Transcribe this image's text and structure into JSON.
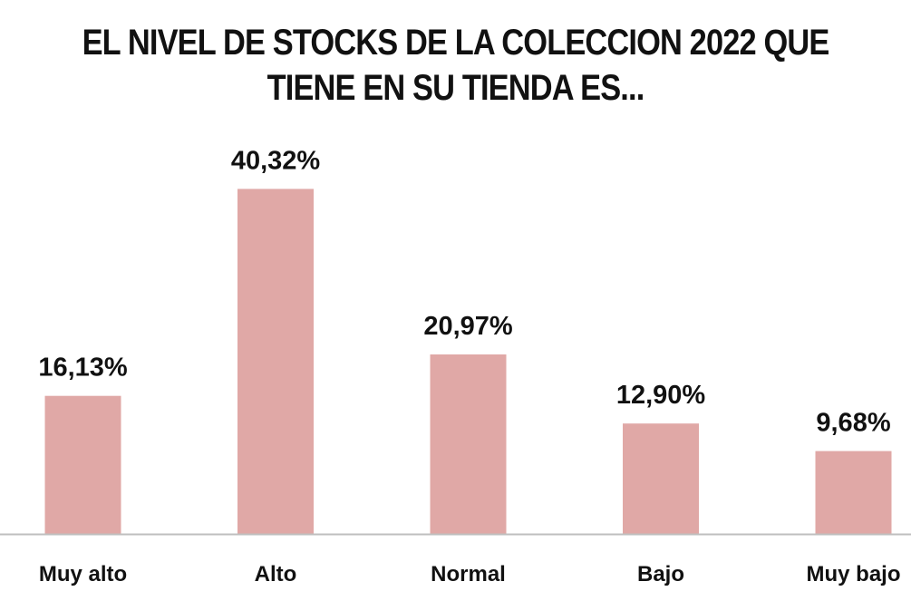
{
  "chart_data": {
    "type": "bar",
    "title": [
      "EL NIVEL DE STOCKS DE LA COLECCION 2022 QUE",
      "TIENE EN SU TIENDA ES..."
    ],
    "categories": [
      "Muy alto",
      "Alto",
      "Normal",
      "Bajo",
      "Muy bajo"
    ],
    "values": [
      16.13,
      40.32,
      20.97,
      12.9,
      9.68
    ],
    "data_labels": [
      "16,13%",
      "40,32%",
      "20,97%",
      "12,90%",
      "9,68%"
    ],
    "xlabel": "",
    "ylabel": "",
    "ylim": [
      0,
      45
    ],
    "grid": false,
    "legend": "none",
    "colors": {
      "bar": "#e0a8a6",
      "axis": "#bfbfbf",
      "text": "#111111"
    }
  }
}
